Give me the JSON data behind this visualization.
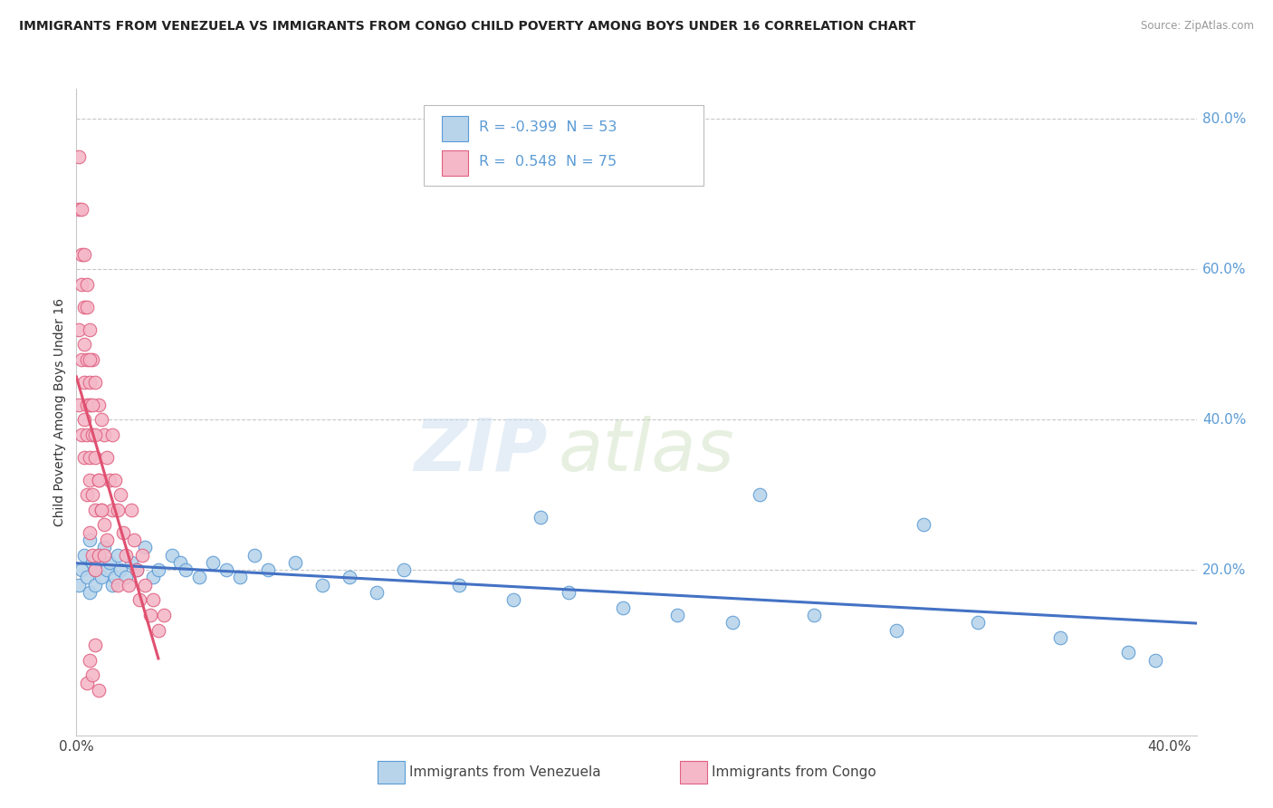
{
  "title": "IMMIGRANTS FROM VENEZUELA VS IMMIGRANTS FROM CONGO CHILD POVERTY AMONG BOYS UNDER 16 CORRELATION CHART",
  "source": "Source: ZipAtlas.com",
  "ylabel": "Child Poverty Among Boys Under 16",
  "xlim": [
    0.0,
    0.41
  ],
  "ylim": [
    -0.02,
    0.84
  ],
  "legend_R_venezuela": "-0.399",
  "legend_N_venezuela": "53",
  "legend_R_congo": "0.548",
  "legend_N_congo": "75",
  "color_venezuela_fill": "#b8d4ea",
  "color_venezuela_edge": "#5b9bd5",
  "color_congo_fill": "#f4b8c8",
  "color_congo_edge": "#e06080",
  "color_venezuela_line": "#4472c4",
  "color_congo_line": "#e05070",
  "watermark_zip": "ZIP",
  "watermark_atlas": "atlas",
  "background_color": "#ffffff",
  "grid_color": "#c8c8c8",
  "right_tick_color": "#5b9bd5",
  "venezuela_x": [
    0.001,
    0.002,
    0.003,
    0.004,
    0.005,
    0.005,
    0.006,
    0.007,
    0.007,
    0.008,
    0.009,
    0.01,
    0.011,
    0.012,
    0.013,
    0.014,
    0.015,
    0.016,
    0.018,
    0.02,
    0.022,
    0.025,
    0.028,
    0.03,
    0.035,
    0.038,
    0.04,
    0.045,
    0.05,
    0.055,
    0.06,
    0.065,
    0.07,
    0.08,
    0.09,
    0.1,
    0.11,
    0.12,
    0.14,
    0.16,
    0.18,
    0.2,
    0.22,
    0.24,
    0.27,
    0.3,
    0.33,
    0.36,
    0.385,
    0.395,
    0.17,
    0.25,
    0.31
  ],
  "venezuela_y": [
    0.18,
    0.2,
    0.22,
    0.19,
    0.24,
    0.17,
    0.21,
    0.18,
    0.2,
    0.22,
    0.19,
    0.23,
    0.2,
    0.21,
    0.18,
    0.19,
    0.22,
    0.2,
    0.19,
    0.21,
    0.2,
    0.23,
    0.19,
    0.2,
    0.22,
    0.21,
    0.2,
    0.19,
    0.21,
    0.2,
    0.19,
    0.22,
    0.2,
    0.21,
    0.18,
    0.19,
    0.17,
    0.2,
    0.18,
    0.16,
    0.17,
    0.15,
    0.14,
    0.13,
    0.14,
    0.12,
    0.13,
    0.11,
    0.09,
    0.08,
    0.27,
    0.3,
    0.26
  ],
  "congo_x": [
    0.001,
    0.001,
    0.001,
    0.002,
    0.002,
    0.002,
    0.002,
    0.003,
    0.003,
    0.003,
    0.003,
    0.003,
    0.004,
    0.004,
    0.004,
    0.004,
    0.004,
    0.005,
    0.005,
    0.005,
    0.005,
    0.005,
    0.005,
    0.006,
    0.006,
    0.006,
    0.006,
    0.007,
    0.007,
    0.007,
    0.007,
    0.008,
    0.008,
    0.008,
    0.009,
    0.009,
    0.01,
    0.01,
    0.011,
    0.011,
    0.012,
    0.013,
    0.013,
    0.014,
    0.015,
    0.015,
    0.016,
    0.017,
    0.018,
    0.019,
    0.02,
    0.021,
    0.022,
    0.023,
    0.024,
    0.025,
    0.027,
    0.028,
    0.03,
    0.032,
    0.001,
    0.002,
    0.003,
    0.004,
    0.005,
    0.006,
    0.007,
    0.008,
    0.009,
    0.01,
    0.004,
    0.005,
    0.006,
    0.007,
    0.008
  ],
  "congo_y": [
    0.68,
    0.52,
    0.42,
    0.58,
    0.48,
    0.38,
    0.62,
    0.55,
    0.45,
    0.35,
    0.5,
    0.4,
    0.58,
    0.48,
    0.38,
    0.3,
    0.42,
    0.52,
    0.42,
    0.32,
    0.45,
    0.35,
    0.25,
    0.48,
    0.38,
    0.3,
    0.22,
    0.45,
    0.35,
    0.28,
    0.2,
    0.42,
    0.32,
    0.22,
    0.4,
    0.28,
    0.38,
    0.26,
    0.35,
    0.24,
    0.32,
    0.28,
    0.38,
    0.32,
    0.28,
    0.18,
    0.3,
    0.25,
    0.22,
    0.18,
    0.28,
    0.24,
    0.2,
    0.16,
    0.22,
    0.18,
    0.14,
    0.16,
    0.12,
    0.14,
    0.75,
    0.68,
    0.62,
    0.55,
    0.48,
    0.42,
    0.38,
    0.32,
    0.28,
    0.22,
    0.05,
    0.08,
    0.06,
    0.1,
    0.04
  ]
}
